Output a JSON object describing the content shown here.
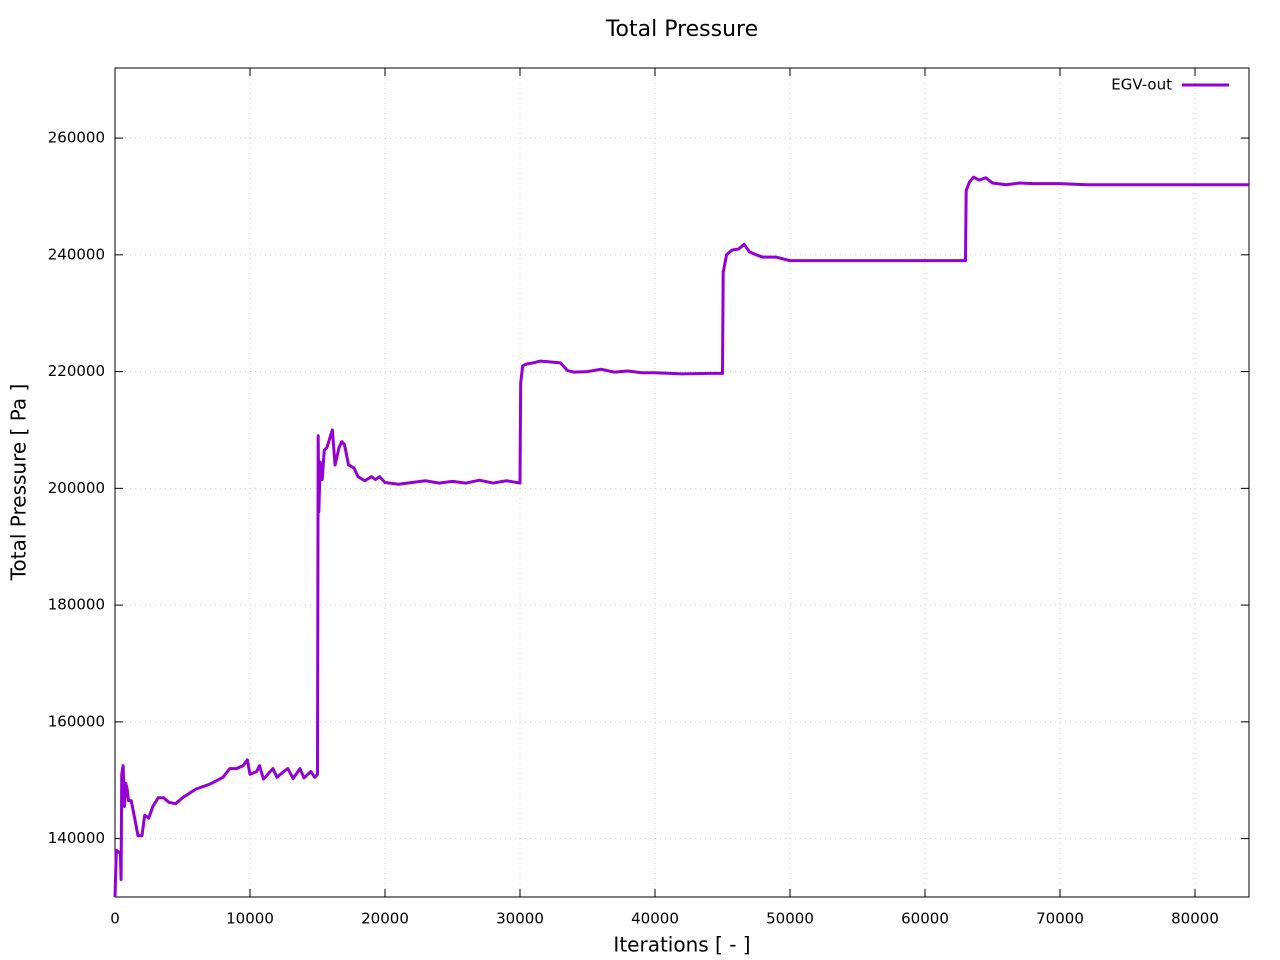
{
  "chart_data": {
    "type": "line",
    "title": "Total Pressure",
    "x_label": "Iterations [ - ]",
    "y_label": "Total Pressure [ Pa ]",
    "x": [
      0,
      100,
      400,
      450,
      500,
      600,
      700,
      800,
      900,
      1000,
      1200,
      1500,
      1700,
      2000,
      2200,
      2500,
      2800,
      3200,
      3600,
      4000,
      4500,
      5000,
      6000,
      7000,
      8000,
      8500,
      9000,
      9500,
      9800,
      10000,
      10500,
      10700,
      11000,
      11500,
      11700,
      12000,
      12500,
      12800,
      13200,
      13700,
      14000,
      14500,
      14800,
      15000,
      15050,
      15100,
      15200,
      15350,
      15500,
      15700,
      15900,
      16100,
      16300,
      16600,
      16800,
      17000,
      17300,
      17700,
      18000,
      18500,
      19000,
      19300,
      19600,
      20000,
      21000,
      22000,
      23000,
      24000,
      25000,
      26000,
      27000,
      28000,
      29000,
      30000,
      30050,
      30200,
      30500,
      31000,
      31500,
      32000,
      33000,
      33500,
      34000,
      35000,
      36000,
      37000,
      38000,
      39000,
      40000,
      42000,
      44000,
      45000,
      45050,
      45300,
      45700,
      46200,
      46600,
      47000,
      47500,
      48000,
      49000,
      50000,
      52000,
      55000,
      60000,
      63000,
      63050,
      63300,
      63600,
      64000,
      64500,
      65000,
      66000,
      67000,
      68000,
      70000,
      72000,
      75000,
      80000,
      84000
    ],
    "series": [
      {
        "name": "EGV-out",
        "color": "#9400d3",
        "values": [
          130000,
          138000,
          137500,
          133000,
          151000,
          152500,
          145500,
          149500,
          148500,
          146500,
          146500,
          143000,
          140500,
          140500,
          144000,
          143500,
          145500,
          147000,
          147000,
          146200,
          146000,
          147000,
          148500,
          149300,
          150500,
          152000,
          152000,
          152500,
          153500,
          151000,
          151500,
          152500,
          150200,
          151500,
          152000,
          150500,
          151500,
          152000,
          150300,
          152000,
          150400,
          151500,
          150500,
          151000,
          209000,
          196000,
          204500,
          201500,
          206500,
          207000,
          208500,
          210000,
          204000,
          207000,
          208000,
          207500,
          204000,
          203500,
          202000,
          201300,
          202000,
          201500,
          202000,
          201000,
          200700,
          201000,
          201300,
          200900,
          201200,
          200900,
          201400,
          200900,
          201300,
          200900,
          218000,
          221000,
          221300,
          221500,
          221800,
          221700,
          221500,
          220200,
          219900,
          220000,
          220400,
          219900,
          220100,
          219800,
          219800,
          219600,
          219700,
          219700,
          237000,
          240000,
          240800,
          241000,
          241800,
          240500,
          240000,
          239600,
          239600,
          239000,
          239000,
          239000,
          239000,
          239000,
          251000,
          252500,
          253300,
          252800,
          253200,
          252300,
          252000,
          252300,
          252200,
          252200,
          252000,
          252000,
          252000,
          252000
        ]
      }
    ],
    "xlim": [
      0,
      84000
    ],
    "ylim": [
      130000,
      272000
    ],
    "xticks": [
      0,
      10000,
      20000,
      30000,
      40000,
      50000,
      60000,
      70000,
      80000
    ],
    "yticks": [
      140000,
      160000,
      180000,
      200000,
      220000,
      240000,
      260000
    ],
    "grid": true,
    "legend": "top-right"
  }
}
